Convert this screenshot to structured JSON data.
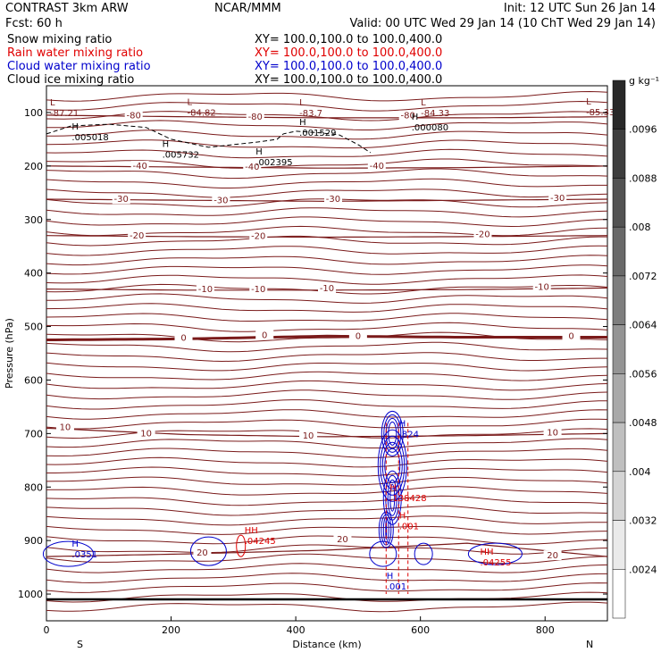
{
  "header": {
    "model": "CONTRAST  3km ARW",
    "center": "NCAR/MMM",
    "init": "Init: 12 UTC Sun 26 Jan 14",
    "fcst": "Fcst:    60 h",
    "valid": "Valid: 00 UTC Wed 29 Jan 14 (10 ChT Wed 29 Jan 14)"
  },
  "legend": [
    {
      "label": "Snow mixing ratio",
      "xy": "XY= 100.0,100.0 to 100.0,400.0",
      "color": "#000000"
    },
    {
      "label": "Rain water mixing ratio",
      "xy": "XY= 100.0,100.0 to 100.0,400.0",
      "color": "#e00000"
    },
    {
      "label": "Cloud water mixing ratio",
      "xy": "XY= 100.0,100.0 to 100.0,400.0",
      "color": "#0000cc"
    },
    {
      "label": "Cloud ice mixing ratio",
      "xy": "XY= 100.0,100.0 to 100.0,400.0",
      "color": "#000000"
    }
  ],
  "colorbar": {
    "unit": "g kg⁻¹",
    "labels": [
      ".0096",
      ".0088",
      ".008",
      ".0072",
      ".0064",
      ".0056",
      ".0048",
      ".004",
      ".0032",
      ".0024"
    ]
  },
  "chart_data": {
    "type": "cross-section",
    "xlabel": "Distance (km)",
    "ylabel": "Pressure (hPa)",
    "xlim": [
      0,
      900
    ],
    "ylim": [
      1050,
      50
    ],
    "xticks": [
      0,
      200,
      400,
      600,
      800
    ],
    "yticks": [
      100,
      200,
      300,
      400,
      500,
      600,
      700,
      800,
      900,
      1000
    ],
    "x_end_labels": {
      "left": "S",
      "right": "N"
    },
    "temperature_contours": [
      {
        "label": "-80",
        "p": [
          105,
          108,
          110,
          110,
          108
        ],
        "label_pos": [
          [
            140,
            108
          ],
          [
            335,
            110
          ],
          [
            580,
            108
          ]
        ]
      },
      {
        "label": "-40",
        "p": [
          200,
          202,
          204,
          203,
          200
        ],
        "label_pos": [
          [
            150,
            202
          ],
          [
            330,
            204
          ],
          [
            530,
            202
          ]
        ]
      },
      {
        "label": "-30",
        "p": [
          262,
          264,
          266,
          264,
          262
        ],
        "label_pos": [
          [
            120,
            264
          ],
          [
            280,
            266
          ],
          [
            460,
            264
          ],
          [
            820,
            262
          ]
        ]
      },
      {
        "label": "-20",
        "p": [
          330,
          332,
          333,
          332,
          330
        ],
        "label_pos": [
          [
            145,
            332
          ],
          [
            340,
            333
          ],
          [
            700,
            330
          ]
        ]
      },
      {
        "label": "-10",
        "p": [
          430,
          432,
          432,
          431,
          428
        ],
        "label_pos": [
          [
            255,
            432
          ],
          [
            340,
            432
          ],
          [
            450,
            431
          ],
          [
            795,
            428
          ]
        ]
      },
      {
        "label": "0",
        "p": [
          525,
          523,
          518,
          520,
          520
        ],
        "label_pos": [
          [
            220,
            523
          ],
          [
            350,
            518
          ],
          [
            500,
            520
          ],
          [
            842,
            520
          ]
        ]
      },
      {
        "label": "10",
        "p": [
          690,
          702,
          706,
          704,
          700
        ],
        "label_pos": [
          [
            30,
            690
          ],
          [
            160,
            702
          ],
          [
            420,
            706
          ],
          [
            812,
            700
          ]
        ]
      },
      {
        "label": "20",
        "p": [
          930,
          925,
          918,
          905,
          930
        ],
        "label_pos": [
          [
            250,
            925
          ],
          [
            475,
            900
          ],
          [
            812,
            930
          ]
        ]
      }
    ],
    "extrema": [
      {
        "type": "L",
        "label": "-87.21",
        "x": 0,
        "p": 100
      },
      {
        "type": "L",
        "label": "-84.82",
        "x": 220,
        "p": 99
      },
      {
        "type": "L",
        "label": "-83.7",
        "x": 400,
        "p": 100
      },
      {
        "type": "L",
        "label": "-84.33",
        "x": 595,
        "p": 100
      },
      {
        "type": "L",
        "label": "-85.33",
        "x": 860,
        "p": 98
      },
      {
        "type": "H",
        "label": ".005018",
        "x": 35,
        "p": 145
      },
      {
        "type": "H",
        "label": ".005732",
        "x": 180,
        "p": 178
      },
      {
        "type": "H",
        "label": ".001529",
        "x": 400,
        "p": 137
      },
      {
        "type": "H",
        "label": ".000080",
        "x": 580,
        "p": 127
      },
      {
        "type": "H",
        "label": ".002395",
        "x": 330,
        "p": 192
      },
      {
        "type": "H",
        "label": ".824",
        "x": 560,
        "p": 700
      },
      {
        "type": "H",
        "label": ".138428",
        "x": 545,
        "p": 820
      },
      {
        "type": "H",
        "label": ".001",
        "x": 540,
        "p": 985
      },
      {
        "type": "H",
        "label": ".001",
        "x": 560,
        "p": 872
      },
      {
        "type": "H",
        "label": ".0351",
        "x": 35,
        "p": 925
      },
      {
        "type": "HH",
        "label": ".04245",
        "x": 312,
        "p": 900
      },
      {
        "type": "HH",
        "label": ".04255",
        "x": 690,
        "p": 940
      }
    ]
  }
}
